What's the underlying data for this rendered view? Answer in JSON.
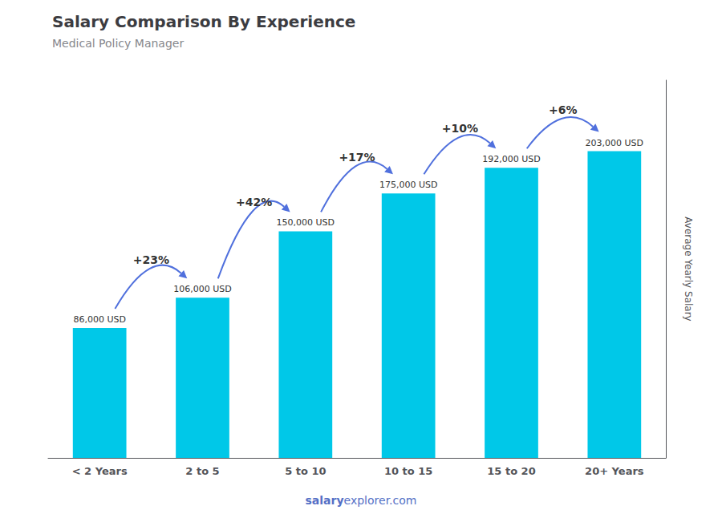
{
  "chart_data": {
    "type": "bar",
    "title": "Salary Comparison By Experience",
    "subtitle": "Medical Policy Manager",
    "categories": [
      "< 2 Years",
      "2 to 5",
      "5 to 10",
      "10 to 15",
      "15 to 20",
      "20+ Years"
    ],
    "values": [
      86000,
      106000,
      150000,
      175000,
      192000,
      203000
    ],
    "value_labels": [
      "86,000 USD",
      "106,000 USD",
      "150,000 USD",
      "175,000 USD",
      "192,000 USD",
      "203,000 USD"
    ],
    "data_labels": true,
    "color": "#00C8E8",
    "ylabel": "Average Yearly Salary",
    "ylim": [
      0,
      250000
    ],
    "tick_labels": "x",
    "grid": false,
    "annotations": [
      "+23%",
      "+42%",
      "+17%",
      "+10%",
      "+6%"
    ],
    "watermark": [
      "salary",
      "explorer.com"
    ]
  }
}
